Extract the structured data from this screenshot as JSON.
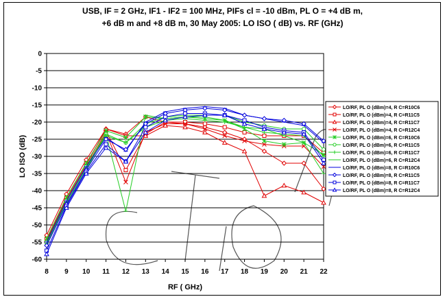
{
  "chart_data": {
    "type": "line",
    "title": "USB, IF = 2 GHz, IF1 - IF2 = 100 MHz, PIFs cl = -10 dBm, PL O = +4 dB m,\n+6 dB m and  +8 dB m, 30 May 2005: LO ISO ( dB) vs. RF (GHz)",
    "xlabel": "RF ( GHz)",
    "ylabel": "LO ISO (dB)",
    "xlim": [
      8,
      22
    ],
    "ylim": [
      -60,
      0
    ],
    "x_ticks": [
      "8",
      "9",
      "10",
      "11",
      "12",
      "13",
      "14",
      "15",
      "16",
      "17",
      "18",
      "19",
      "20",
      "21",
      "22"
    ],
    "y_ticks": [
      "0",
      "-5",
      "-10",
      "-15",
      "-20",
      "-25",
      "-30",
      "-35",
      "-40",
      "-45",
      "-50",
      "-55",
      "-60"
    ],
    "grid": "horizontal",
    "legend_position": "right",
    "x": [
      8,
      9,
      10,
      11,
      12,
      13,
      14,
      15,
      16,
      17,
      18,
      19,
      20,
      21,
      22
    ],
    "series": [
      {
        "name": "LO/RF, PL O (dBm)=4, R C=R10C6",
        "color": "#e00000",
        "marker": "diamond",
        "values": [
          -53,
          -41,
          -31,
          -22,
          -23.5,
          -18.5,
          -20,
          -20.5,
          -21.5,
          -23,
          -25,
          -28.5,
          -32,
          -32,
          -39.5
        ]
      },
      {
        "name": "LO/RF, PL O (dBm)=4, R C=R11C5",
        "color": "#e00000",
        "marker": "square",
        "values": [
          -54,
          -42,
          -32,
          -22.5,
          -34,
          -23.5,
          -20,
          -20,
          -20.5,
          -21.5,
          -23,
          -24,
          -24,
          -24,
          -29
        ]
      },
      {
        "name": "LO/RF, PL O (dBm)=4, R C=R11C7",
        "color": "#e00000",
        "marker": "triangle",
        "values": [
          -54.5,
          -42.5,
          -32.5,
          -22,
          -24,
          -24,
          -21,
          -21.5,
          -23,
          -26,
          -28.5,
          -41.5,
          -38.5,
          -40.5,
          -43.5
        ]
      },
      {
        "name": "LO/RF, PL O (dBm)=4, R C=R12C4",
        "color": "#e00000",
        "marker": "x",
        "values": [
          -55,
          -43,
          -33,
          -23,
          -37.5,
          -23,
          -20.5,
          -20.5,
          -22,
          -24,
          -25.5,
          -26.5,
          -27,
          -27,
          -33
        ]
      },
      {
        "name": "LO/RF, PL O (dBm)=6, R C=R10C6",
        "color": "#22cc22",
        "marker": "star",
        "values": [
          -54,
          -42,
          -32,
          -22.5,
          -24.5,
          -18.5,
          -19,
          -18.5,
          -19,
          -19.5,
          -22,
          -25.5,
          -26.5,
          -26,
          -29.5
        ]
      },
      {
        "name": "LO/RF, PL O (dBm)=6, R C=R11C5",
        "color": "#22cc22",
        "marker": "circle",
        "values": [
          -55,
          -43,
          -33,
          -23.5,
          -26,
          -20.5,
          -18.5,
          -18,
          -18,
          -18,
          -20,
          -21,
          -22,
          -22,
          -28
        ]
      },
      {
        "name": "LO/RF, PL O (dBm)=6, R C=R11C7",
        "color": "#22cc22",
        "marker": "plus",
        "values": [
          -55.5,
          -43.5,
          -33.5,
          -24,
          -26,
          -21.5,
          -19.5,
          -19,
          -19.5,
          -20,
          -21.5,
          -23,
          -23.5,
          -24,
          -30
        ]
      },
      {
        "name": "LO/RF, PL O (dBm)=6, R C=R12C4",
        "color": "#22cc22",
        "marker": "dash",
        "values": [
          -56,
          -44,
          -34,
          -23.5,
          -46,
          -18,
          -19,
          -18.5,
          -18.5,
          -19.5,
          -21.5,
          -22,
          -24,
          -26,
          -35
        ]
      },
      {
        "name": "LO/RF, PL O (dBm)=8, R C=R10C6",
        "color": "#0000dd",
        "marker": "dash",
        "values": [
          -55,
          -43,
          -33,
          -24.5,
          -28.5,
          -20,
          -17,
          -16,
          -15.5,
          -16,
          -18,
          -19,
          -20,
          -21,
          -26
        ]
      },
      {
        "name": "LO/RF, PL O (dBm)=8, R C=R11C5",
        "color": "#0000dd",
        "marker": "diamond",
        "values": [
          -56,
          -44,
          -34,
          -25,
          -28,
          -20.5,
          -17.5,
          -16.5,
          -16,
          -16.5,
          -18,
          -19,
          -19.5,
          -20.5,
          -25.5
        ]
      },
      {
        "name": "LO/RF, PL O (dBm)=8, R C=R11C7",
        "color": "#0000dd",
        "marker": "square",
        "values": [
          -57.5,
          -44.5,
          -34.5,
          -26.5,
          -31.5,
          -21.5,
          -18.5,
          -17.5,
          -17.5,
          -18,
          -19.5,
          -21.5,
          -22.5,
          -23,
          -31
        ]
      },
      {
        "name": "LO/RF, PL O (dBm)=8, R C=R12C4",
        "color": "#0000dd",
        "marker": "triangle",
        "values": [
          -58.5,
          -45,
          -35,
          -27.5,
          -31.5,
          -23,
          -19.5,
          -18.5,
          -18,
          -18,
          -20.5,
          -22,
          -23,
          -23.5,
          -32
        ]
      }
    ]
  }
}
